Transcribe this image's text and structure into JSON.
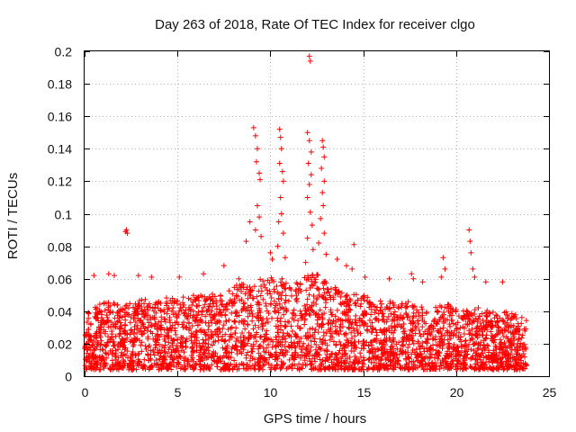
{
  "chart_data": {
    "type": "scatter",
    "title": "Day 263 of 2018, Rate Of TEC Index for receiver clgo",
    "xlabel": "GPS time / hours",
    "ylabel": "ROTI / TECUs",
    "xlim": [
      0,
      25
    ],
    "ylim": [
      0,
      0.2
    ],
    "xticks": [
      0,
      5,
      10,
      15,
      20,
      25
    ],
    "yticks": [
      0,
      0.02,
      0.04,
      0.06,
      0.08,
      0.1,
      0.12,
      0.14,
      0.16,
      0.18,
      0.2
    ],
    "xtick_labels": [
      "0",
      "5",
      "10",
      "15",
      "20",
      "25"
    ],
    "ytick_labels": [
      "0",
      "0.02",
      "0.04",
      "0.06",
      "0.08",
      "0.1",
      "0.12",
      "0.14",
      "0.16",
      "0.18",
      "0.2"
    ],
    "grid": true,
    "marker": "+",
    "series_color": "#ff0000",
    "data_extent_hours": [
      0,
      23.8
    ],
    "background_band": {
      "comment": "dense cloud of ROTI samples, typical range in TECU/min",
      "upper_envelope": [
        [
          0,
          0.041
        ],
        [
          0.5,
          0.043
        ],
        [
          1,
          0.045
        ],
        [
          1.5,
          0.047
        ],
        [
          2,
          0.044
        ],
        [
          2.5,
          0.046
        ],
        [
          3,
          0.048
        ],
        [
          3.5,
          0.047
        ],
        [
          4,
          0.046
        ],
        [
          4.5,
          0.049
        ],
        [
          5,
          0.048
        ],
        [
          5.5,
          0.05
        ],
        [
          6,
          0.051
        ],
        [
          6.5,
          0.049
        ],
        [
          7,
          0.052
        ],
        [
          7.5,
          0.053
        ],
        [
          8,
          0.055
        ],
        [
          8.5,
          0.058
        ],
        [
          9,
          0.057
        ],
        [
          9.5,
          0.06
        ],
        [
          10,
          0.062
        ],
        [
          10.5,
          0.061
        ],
        [
          11,
          0.058
        ],
        [
          11.5,
          0.06
        ],
        [
          12,
          0.062
        ],
        [
          12.5,
          0.063
        ],
        [
          13,
          0.058
        ],
        [
          13.5,
          0.055
        ],
        [
          14,
          0.052
        ],
        [
          14.5,
          0.051
        ],
        [
          15,
          0.05
        ],
        [
          15.5,
          0.048
        ],
        [
          16,
          0.046
        ],
        [
          16.5,
          0.047
        ],
        [
          17,
          0.045
        ],
        [
          17.5,
          0.046
        ],
        [
          18,
          0.044
        ],
        [
          18.5,
          0.04
        ],
        [
          19,
          0.043
        ],
        [
          19.5,
          0.045
        ],
        [
          20,
          0.042
        ],
        [
          20.5,
          0.04
        ],
        [
          21,
          0.043
        ],
        [
          21.5,
          0.041
        ],
        [
          22,
          0.04
        ],
        [
          22.5,
          0.041
        ],
        [
          23,
          0.039
        ],
        [
          23.8,
          0.037
        ]
      ]
    },
    "notable_points": [
      {
        "x": 2.2,
        "y": 0.089
      },
      {
        "x": 2.3,
        "y": 0.088
      },
      {
        "x": 2.25,
        "y": 0.09
      },
      {
        "x": 0.5,
        "y": 0.062
      },
      {
        "x": 1.3,
        "y": 0.063
      },
      {
        "x": 1.6,
        "y": 0.062
      },
      {
        "x": 2.9,
        "y": 0.062
      },
      {
        "x": 3.6,
        "y": 0.061
      },
      {
        "x": 5.1,
        "y": 0.061
      },
      {
        "x": 6.4,
        "y": 0.063
      },
      {
        "x": 7.5,
        "y": 0.068
      },
      {
        "x": 8.3,
        "y": 0.06
      },
      {
        "x": 9.1,
        "y": 0.153
      },
      {
        "x": 9.2,
        "y": 0.148
      },
      {
        "x": 9.3,
        "y": 0.14
      },
      {
        "x": 9.25,
        "y": 0.132
      },
      {
        "x": 9.4,
        "y": 0.125
      },
      {
        "x": 9.45,
        "y": 0.121
      },
      {
        "x": 9.3,
        "y": 0.105
      },
      {
        "x": 9.4,
        "y": 0.098
      },
      {
        "x": 9.2,
        "y": 0.09
      },
      {
        "x": 8.7,
        "y": 0.083
      },
      {
        "x": 8.9,
        "y": 0.095
      },
      {
        "x": 9.5,
        "y": 0.086
      },
      {
        "x": 10.0,
        "y": 0.076
      },
      {
        "x": 10.1,
        "y": 0.072
      },
      {
        "x": 10.5,
        "y": 0.152
      },
      {
        "x": 10.55,
        "y": 0.147
      },
      {
        "x": 10.6,
        "y": 0.14
      },
      {
        "x": 10.5,
        "y": 0.131
      },
      {
        "x": 10.65,
        "y": 0.126
      },
      {
        "x": 10.7,
        "y": 0.12
      },
      {
        "x": 10.55,
        "y": 0.11
      },
      {
        "x": 10.6,
        "y": 0.1
      },
      {
        "x": 10.45,
        "y": 0.095
      },
      {
        "x": 10.7,
        "y": 0.088
      },
      {
        "x": 10.4,
        "y": 0.08
      },
      {
        "x": 10.8,
        "y": 0.073
      },
      {
        "x": 12.1,
        "y": 0.197
      },
      {
        "x": 12.15,
        "y": 0.194
      },
      {
        "x": 12.0,
        "y": 0.15
      },
      {
        "x": 12.1,
        "y": 0.145
      },
      {
        "x": 12.2,
        "y": 0.138
      },
      {
        "x": 12.05,
        "y": 0.131
      },
      {
        "x": 12.2,
        "y": 0.124
      },
      {
        "x": 12.1,
        "y": 0.118
      },
      {
        "x": 12.0,
        "y": 0.11
      },
      {
        "x": 12.15,
        "y": 0.101
      },
      {
        "x": 12.25,
        "y": 0.093
      },
      {
        "x": 12.0,
        "y": 0.085
      },
      {
        "x": 12.3,
        "y": 0.078
      },
      {
        "x": 11.9,
        "y": 0.07
      },
      {
        "x": 12.8,
        "y": 0.145
      },
      {
        "x": 12.85,
        "y": 0.141
      },
      {
        "x": 12.9,
        "y": 0.135
      },
      {
        "x": 12.75,
        "y": 0.128
      },
      {
        "x": 12.9,
        "y": 0.12
      },
      {
        "x": 12.8,
        "y": 0.113
      },
      {
        "x": 12.85,
        "y": 0.105
      },
      {
        "x": 12.7,
        "y": 0.097
      },
      {
        "x": 12.9,
        "y": 0.088
      },
      {
        "x": 12.6,
        "y": 0.082
      },
      {
        "x": 13.0,
        "y": 0.075
      },
      {
        "x": 13.6,
        "y": 0.072
      },
      {
        "x": 14.1,
        "y": 0.068
      },
      {
        "x": 14.5,
        "y": 0.081
      },
      {
        "x": 14.4,
        "y": 0.066
      },
      {
        "x": 15.1,
        "y": 0.061
      },
      {
        "x": 16.4,
        "y": 0.06
      },
      {
        "x": 17.6,
        "y": 0.063
      },
      {
        "x": 17.7,
        "y": 0.06
      },
      {
        "x": 18.2,
        "y": 0.058
      },
      {
        "x": 19.3,
        "y": 0.073
      },
      {
        "x": 19.4,
        "y": 0.066
      },
      {
        "x": 19.2,
        "y": 0.061
      },
      {
        "x": 20.7,
        "y": 0.09
      },
      {
        "x": 20.75,
        "y": 0.083
      },
      {
        "x": 20.8,
        "y": 0.076
      },
      {
        "x": 20.9,
        "y": 0.066
      },
      {
        "x": 21.0,
        "y": 0.061
      },
      {
        "x": 21.6,
        "y": 0.058
      },
      {
        "x": 22.5,
        "y": 0.058
      }
    ]
  }
}
